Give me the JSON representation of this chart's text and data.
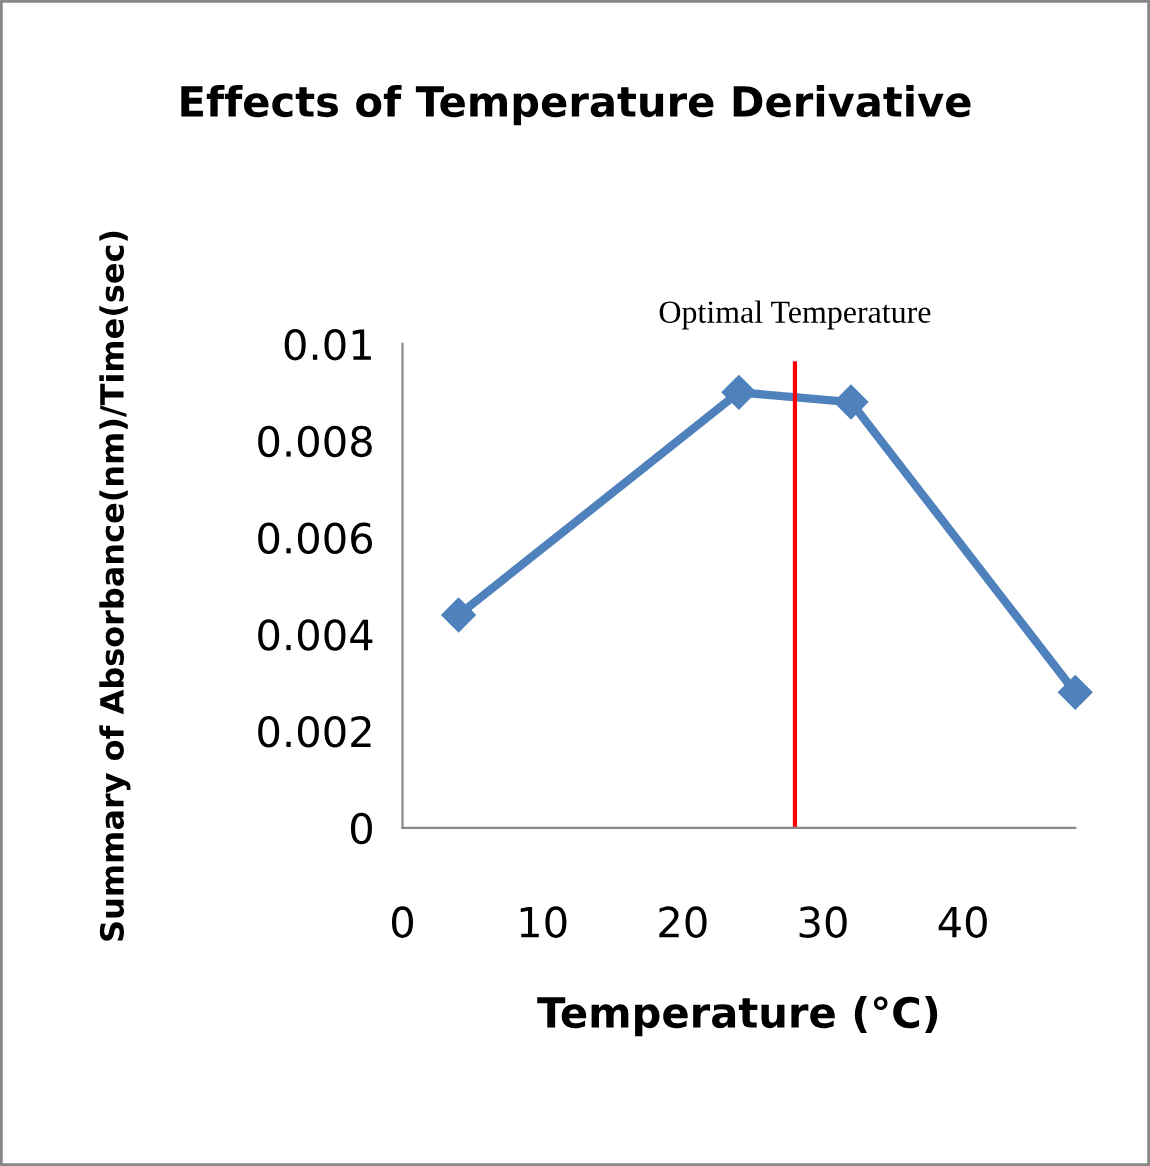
{
  "chart_data": {
    "type": "line",
    "title": "Effects of Temperature Derivative",
    "xlabel": "Temperature (°C)",
    "ylabel": "Summary of Absorbance(nm)/Time(sec)",
    "x": [
      4,
      24,
      32,
      48
    ],
    "series": [
      {
        "color": "#4f81bd",
        "values": [
          0.0044,
          0.009,
          0.0088,
          0.0028
        ]
      }
    ],
    "marker": "diamond",
    "line_style": "solid",
    "grid": false,
    "legend": false,
    "xlim": [
      0,
      48
    ],
    "xticks": [
      0,
      10,
      20,
      30,
      40
    ],
    "ylim": [
      0,
      0.01
    ],
    "yticks": [
      0,
      0.002,
      0.004,
      0.006,
      0.008,
      0.01
    ],
    "ref_lines": [
      {
        "axis": "x",
        "value": 28,
        "label": "Optimal Temperature",
        "color": "#ff0000",
        "line_style": "solid"
      }
    ]
  }
}
